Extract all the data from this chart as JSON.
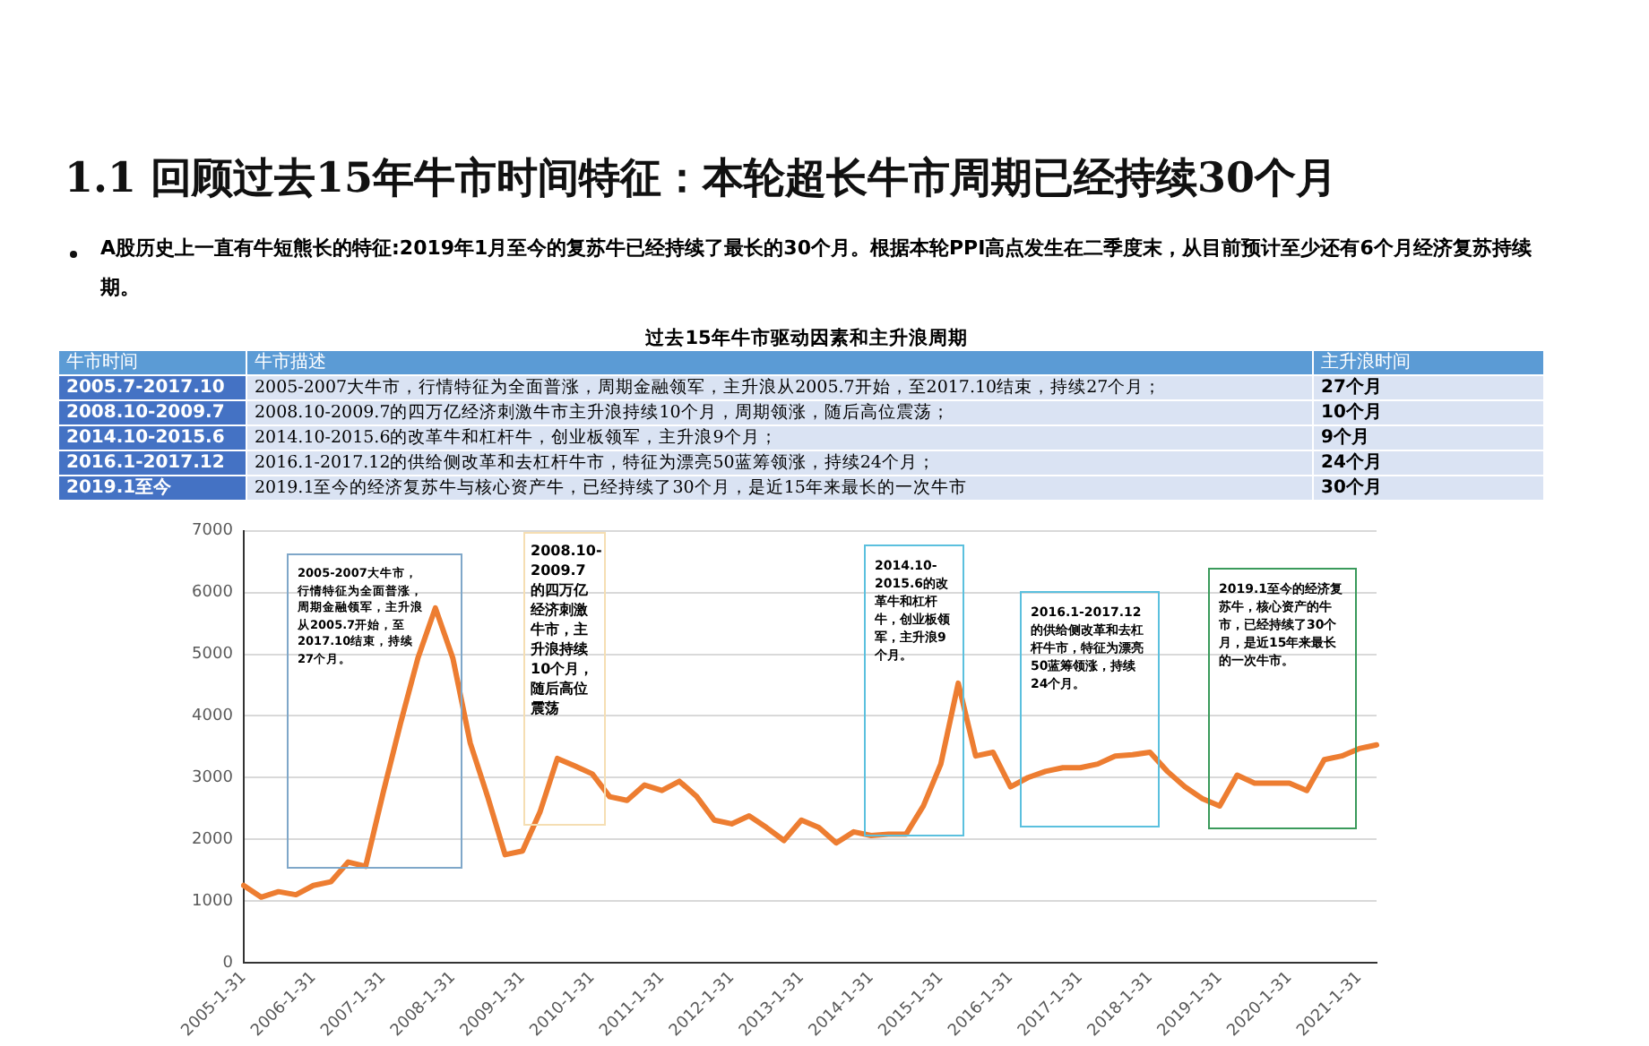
{
  "chart_data": {
    "type": "line",
    "title": "1.1 回顾过去15年牛市时间特征：本轮超长牛市周期已经持续30个月",
    "subtitle": "A股历史上一直有牛短熊长的特征:2019年1月至今的复苏牛已经持续了最长的30个月。根据本轮PPI高点发生在二季度末，从目前预计至少还有6个月经济复苏持续期。",
    "categories": [
      "2005-1-31",
      null,
      null,
      null,
      "2006-1-31",
      null,
      null,
      null,
      "2007-1-31",
      null,
      null,
      null,
      "2008-1-31",
      null,
      null,
      null,
      "2009-1-31",
      null,
      null,
      null,
      "2010-1-31",
      null,
      null,
      null,
      "2011-1-31",
      null,
      null,
      null,
      "2012-1-31",
      null,
      null,
      null,
      "2013-1-31",
      null,
      null,
      null,
      "2014-1-31",
      null,
      null,
      null,
      "2015-1-31",
      null,
      null,
      null,
      "2016-1-31",
      null,
      null,
      null,
      "2017-1-31",
      null,
      null,
      null,
      "2018-1-31",
      null,
      null,
      null,
      "2019-1-31",
      null,
      null,
      null,
      "2020-1-31",
      null,
      null,
      null,
      "2021-1-31",
      null
    ],
    "series": [
      {
        "color": "#ed7d31",
        "values": [
          1250,
          1060,
          1150,
          1100,
          1250,
          1310,
          1630,
          1560,
          2750,
          3880,
          4940,
          5750,
          4940,
          3560,
          2690,
          1750,
          1810,
          2440,
          3310,
          3190,
          3060,
          2690,
          2630,
          2880,
          2790,
          2940,
          2690,
          2310,
          2250,
          2380,
          2190,
          1980,
          2310,
          2190,
          1940,
          2120,
          2060,
          2080,
          2080,
          2540,
          3220,
          4530,
          3350,
          3410,
          2850,
          3000,
          3100,
          3160,
          3160,
          3220,
          3350,
          3370,
          3410,
          3100,
          2850,
          2660,
          2540,
          3040,
          2910,
          2910,
          2910,
          2790,
          3290,
          3350,
          3470,
          3530
        ]
      }
    ],
    "ylim": [
      0,
      7000
    ],
    "yticks": [
      0,
      1000,
      2000,
      3000,
      4000,
      5000,
      6000,
      7000
    ],
    "grid": "y",
    "marker": "none",
    "line_style": "solid",
    "legend": false,
    "annotations": [
      "过去15年牛市驱动因素和主升浪周期",
      "牛市时间",
      "牛市描述",
      "主升浪时间",
      "2005.7-2017.10",
      "2005-2007大牛市，行情特征为全面普涨，周期金融领军，主升浪从2005.7开始，至2017.10结束，持续27个月；",
      "27个月",
      "2008.10-2009.7",
      "2008.10-2009.7的四万亿经济刺激牛市主升浪持续10个月，周期领涨，随后高位震荡；",
      "10个月",
      "2014.10-2015.6",
      "2014.10-2015.6的改革牛和杠杆牛，创业板领军，主升浪9个月；",
      "9个月",
      "2016.1-2017.12",
      "2016.1-2017.12的供给侧改革和去杠杆牛市，特征为漂亮50蓝筹领涨，持续24个月；",
      "24个月",
      "2019.1至今",
      "2019.1至今的经济复苏牛与核心资产牛，已经持续了30个月，是近15年来最长的一次牛市",
      "30个月",
      "2005-2007大牛市，行情特征为全面普涨，周期金融领军，主升浪从2005.7开始，至2017.10结束，持续27个月。",
      "2008.10-2009.7的四万亿经济刺激牛市，主升浪持续10个月，随后高位震荡",
      "2014.10-2015.6的改革牛和杠杆牛，创业板领军，主升浪9个月。",
      "2016.1-2017.12的供给侧改革和去杠杆牛市，特征为漂亮50蓝筹领涨，持续24个月。",
      "2019.1至今的经济复苏牛，核心资产的牛市，已经持续了30个月，是近15年来最长的一次牛市。"
    ]
  }
}
